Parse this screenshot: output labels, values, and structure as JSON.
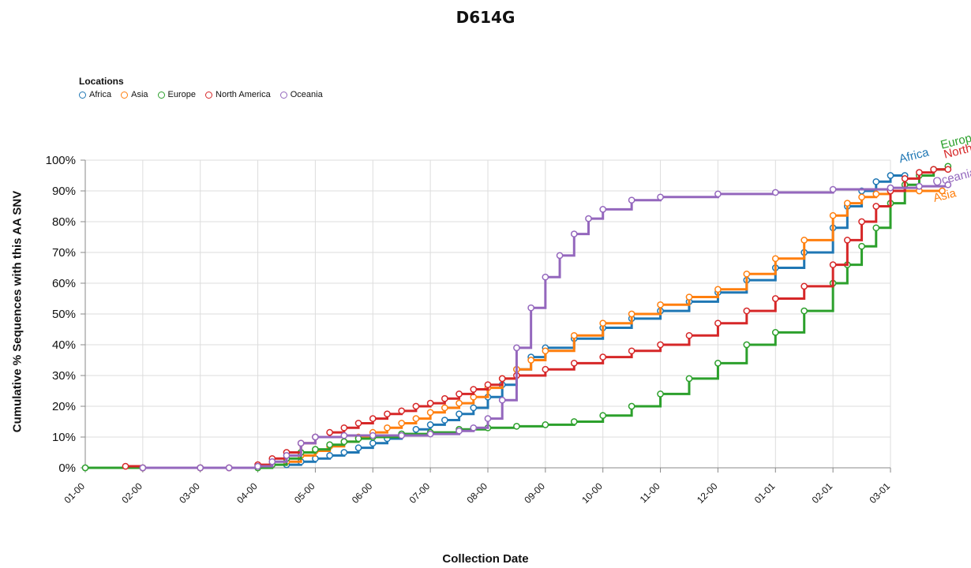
{
  "chart_data": {
    "type": "line",
    "title": "D614G",
    "xlabel": "Collection Date",
    "ylabel": "Cumulative % Sequences with this AA SNV",
    "legend": {
      "title": "Locations",
      "placement": "top-left"
    },
    "x_ticks": [
      "01-00",
      "02-00",
      "03-00",
      "04-00",
      "05-00",
      "06-00",
      "07-00",
      "08-00",
      "09-00",
      "10-00",
      "11-00",
      "12-00",
      "01-01",
      "02-01",
      "03-01"
    ],
    "y_ticks": [
      "0%",
      "10%",
      "20%",
      "30%",
      "40%",
      "50%",
      "60%",
      "70%",
      "80%",
      "90%",
      "100%"
    ],
    "ylim": [
      0,
      100
    ],
    "grid": true,
    "series": [
      {
        "name": "Africa",
        "color": "#1f77b4",
        "end_label": "Africa",
        "points": [
          [
            3.5,
            1
          ],
          [
            3.75,
            2
          ],
          [
            4.0,
            3
          ],
          [
            4.25,
            4
          ],
          [
            4.5,
            5
          ],
          [
            4.75,
            6.5
          ],
          [
            5.0,
            8
          ],
          [
            5.25,
            9.5
          ],
          [
            5.5,
            11
          ],
          [
            5.75,
            12.5
          ],
          [
            6.0,
            14
          ],
          [
            6.25,
            15.5
          ],
          [
            6.5,
            17.5
          ],
          [
            6.75,
            19.5
          ],
          [
            7.0,
            23
          ],
          [
            7.25,
            27
          ],
          [
            7.5,
            32
          ],
          [
            7.75,
            36
          ],
          [
            8.0,
            39
          ],
          [
            8.5,
            42
          ],
          [
            9.0,
            45.5
          ],
          [
            9.5,
            48.5
          ],
          [
            10.0,
            51
          ],
          [
            10.5,
            54
          ],
          [
            11.0,
            57
          ],
          [
            11.5,
            61
          ],
          [
            12.0,
            65
          ],
          [
            12.5,
            70
          ],
          [
            13.0,
            78
          ],
          [
            13.25,
            85
          ],
          [
            13.5,
            90
          ],
          [
            13.75,
            93
          ],
          [
            14.0,
            95
          ],
          [
            14.25,
            95
          ]
        ]
      },
      {
        "name": "Asia",
        "color": "#ff7f0e",
        "end_label": "Asia",
        "points": [
          [
            3.5,
            2
          ],
          [
            3.75,
            4
          ],
          [
            4.0,
            5.5
          ],
          [
            4.25,
            7
          ],
          [
            4.5,
            8.5
          ],
          [
            4.75,
            10
          ],
          [
            5.0,
            11.5
          ],
          [
            5.25,
            13
          ],
          [
            5.5,
            14.5
          ],
          [
            5.75,
            16
          ],
          [
            6.0,
            18
          ],
          [
            6.25,
            19.5
          ],
          [
            6.5,
            21
          ],
          [
            6.75,
            23
          ],
          [
            7.0,
            26
          ],
          [
            7.25,
            29
          ],
          [
            7.5,
            32
          ],
          [
            7.75,
            35
          ],
          [
            8.0,
            38
          ],
          [
            8.5,
            43
          ],
          [
            9.0,
            47
          ],
          [
            9.5,
            50
          ],
          [
            10.0,
            53
          ],
          [
            10.5,
            55.5
          ],
          [
            11.0,
            58
          ],
          [
            11.5,
            63
          ],
          [
            12.0,
            68
          ],
          [
            12.5,
            74
          ],
          [
            13.0,
            82
          ],
          [
            13.25,
            86
          ],
          [
            13.5,
            88
          ],
          [
            13.75,
            89
          ],
          [
            14.0,
            90
          ],
          [
            14.5,
            90
          ],
          [
            14.9,
            90
          ]
        ]
      },
      {
        "name": "Europe",
        "color": "#2ca02c",
        "end_label": "Europe",
        "points": [
          [
            0.0,
            0
          ],
          [
            1.0,
            0
          ],
          [
            2.0,
            0
          ],
          [
            3.0,
            0
          ],
          [
            3.25,
            1
          ],
          [
            3.5,
            3
          ],
          [
            3.75,
            5
          ],
          [
            4.0,
            6
          ],
          [
            4.25,
            7.5
          ],
          [
            4.5,
            8.5
          ],
          [
            4.75,
            9.5
          ],
          [
            5.0,
            10
          ],
          [
            5.5,
            11
          ],
          [
            6.0,
            11.5
          ],
          [
            6.5,
            12.5
          ],
          [
            7.0,
            13
          ],
          [
            7.5,
            13.5
          ],
          [
            8.0,
            14
          ],
          [
            8.5,
            15
          ],
          [
            9.0,
            17
          ],
          [
            9.5,
            20
          ],
          [
            10.0,
            24
          ],
          [
            10.5,
            29
          ],
          [
            11.0,
            34
          ],
          [
            11.5,
            40
          ],
          [
            12.0,
            44
          ],
          [
            12.5,
            51
          ],
          [
            13.0,
            60
          ],
          [
            13.25,
            66
          ],
          [
            13.5,
            72
          ],
          [
            13.75,
            78
          ],
          [
            14.0,
            86
          ],
          [
            14.25,
            92
          ],
          [
            14.5,
            95
          ],
          [
            14.75,
            97
          ],
          [
            15.0,
            98
          ]
        ]
      },
      {
        "name": "North America",
        "color": "#d62728",
        "end_label": "North America",
        "points": [
          [
            0.7,
            0.5
          ],
          [
            1.0,
            0
          ],
          [
            2.0,
            0
          ],
          [
            2.5,
            0
          ],
          [
            3.0,
            1
          ],
          [
            3.25,
            3
          ],
          [
            3.5,
            5
          ],
          [
            3.75,
            8
          ],
          [
            4.0,
            10
          ],
          [
            4.25,
            11.5
          ],
          [
            4.5,
            13
          ],
          [
            4.75,
            14.5
          ],
          [
            5.0,
            16
          ],
          [
            5.25,
            17.5
          ],
          [
            5.5,
            18.5
          ],
          [
            5.75,
            20
          ],
          [
            6.0,
            21
          ],
          [
            6.25,
            22.5
          ],
          [
            6.5,
            24
          ],
          [
            6.75,
            25.5
          ],
          [
            7.0,
            27
          ],
          [
            7.25,
            29
          ],
          [
            7.5,
            30
          ],
          [
            8.0,
            32
          ],
          [
            8.5,
            34
          ],
          [
            9.0,
            36
          ],
          [
            9.5,
            38
          ],
          [
            10.0,
            40
          ],
          [
            10.5,
            43
          ],
          [
            11.0,
            47
          ],
          [
            11.5,
            51
          ],
          [
            12.0,
            55
          ],
          [
            12.5,
            59
          ],
          [
            13.0,
            66
          ],
          [
            13.25,
            74
          ],
          [
            13.5,
            80
          ],
          [
            13.75,
            85
          ],
          [
            14.0,
            90
          ],
          [
            14.25,
            94
          ],
          [
            14.5,
            96
          ],
          [
            14.75,
            97
          ],
          [
            15.0,
            97
          ]
        ]
      },
      {
        "name": "Oceania",
        "color": "#9467bd",
        "end_label": "Oceania",
        "points": [
          [
            1.0,
            0
          ],
          [
            2.0,
            0
          ],
          [
            2.5,
            0
          ],
          [
            3.0,
            0.5
          ],
          [
            3.25,
            2
          ],
          [
            3.5,
            4
          ],
          [
            3.75,
            8
          ],
          [
            4.0,
            10
          ],
          [
            4.5,
            10.5
          ],
          [
            5.0,
            10.5
          ],
          [
            5.5,
            10.5
          ],
          [
            6.0,
            11
          ],
          [
            6.5,
            12
          ],
          [
            6.75,
            13
          ],
          [
            7.0,
            16
          ],
          [
            7.25,
            22
          ],
          [
            7.5,
            39
          ],
          [
            7.75,
            52
          ],
          [
            8.0,
            62
          ],
          [
            8.25,
            69
          ],
          [
            8.5,
            76
          ],
          [
            8.75,
            81
          ],
          [
            9.0,
            84
          ],
          [
            9.5,
            87
          ],
          [
            10.0,
            88
          ],
          [
            11.0,
            89
          ],
          [
            12.0,
            89.5
          ],
          [
            13.0,
            90.5
          ],
          [
            14.0,
            91
          ],
          [
            14.5,
            91.5
          ],
          [
            15.0,
            92
          ]
        ]
      }
    ]
  }
}
